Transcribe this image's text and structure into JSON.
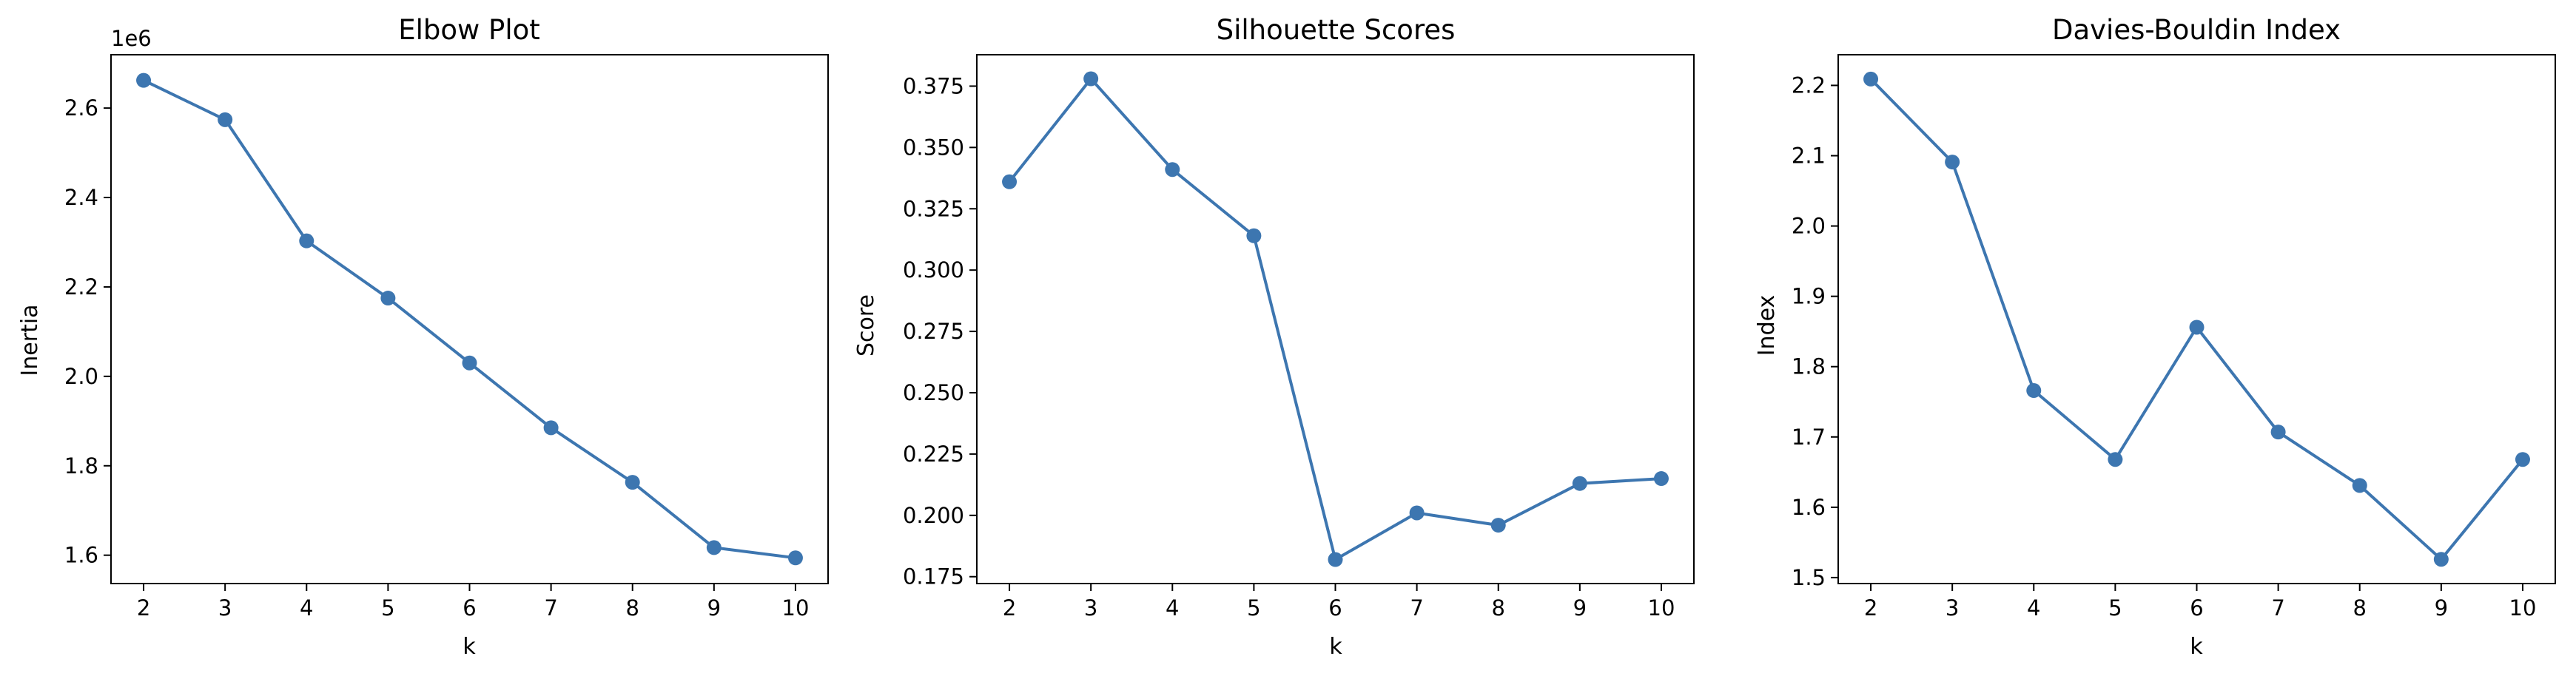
{
  "colors": {
    "series": "#3d76b0",
    "axes": "#000000",
    "background": "#ffffff"
  },
  "chart_data": [
    {
      "type": "line",
      "title": "Elbow Plot",
      "xlabel": "k",
      "ylabel": "Inertia",
      "y_offset_label": "1e6",
      "x": [
        2,
        3,
        4,
        5,
        6,
        7,
        8,
        9,
        10
      ],
      "x_ticks": [
        "2",
        "3",
        "4",
        "5",
        "6",
        "7",
        "8",
        "9",
        "10"
      ],
      "values": [
        2.662,
        2.574,
        2.303,
        2.175,
        2.03,
        1.885,
        1.763,
        1.617,
        1.594
      ],
      "xlim": [
        1.6,
        10.4
      ],
      "ylim": [
        1.5366,
        2.7193
      ],
      "y_ticks": [
        1.6,
        1.8,
        2.0,
        2.2,
        2.4,
        2.6
      ],
      "y_tick_labels": [
        "1.6",
        "1.8",
        "2.0",
        "2.2",
        "2.4",
        "2.6"
      ],
      "marker": "circle",
      "grid": false
    },
    {
      "type": "line",
      "title": "Silhouette Scores",
      "xlabel": "k",
      "ylabel": "Score",
      "x": [
        2,
        3,
        4,
        5,
        6,
        7,
        8,
        9,
        10
      ],
      "x_ticks": [
        "2",
        "3",
        "4",
        "5",
        "6",
        "7",
        "8",
        "9",
        "10"
      ],
      "values": [
        0.336,
        0.378,
        0.341,
        0.314,
        0.182,
        0.201,
        0.196,
        0.213,
        0.215
      ],
      "xlim": [
        1.6,
        10.4
      ],
      "ylim": [
        0.1722,
        0.3878
      ],
      "y_ticks": [
        0.175,
        0.2,
        0.225,
        0.25,
        0.275,
        0.3,
        0.325,
        0.35,
        0.375
      ],
      "y_tick_labels": [
        "0.175",
        "0.200",
        "0.225",
        "0.250",
        "0.275",
        "0.300",
        "0.325",
        "0.350",
        "0.375"
      ],
      "marker": "circle",
      "grid": false
    },
    {
      "type": "line",
      "title": "Davies-Bouldin Index",
      "xlabel": "k",
      "ylabel": "Index",
      "x": [
        2,
        3,
        4,
        5,
        6,
        7,
        8,
        9,
        10
      ],
      "x_ticks": [
        "2",
        "3",
        "4",
        "5",
        "6",
        "7",
        "8",
        "9",
        "10"
      ],
      "values": [
        2.209,
        2.091,
        1.766,
        1.668,
        1.856,
        1.707,
        1.631,
        1.526,
        1.668
      ],
      "xlim": [
        1.6,
        10.4
      ],
      "ylim": [
        1.4915,
        2.2436
      ],
      "y_ticks": [
        1.5,
        1.6,
        1.7,
        1.8,
        1.9,
        2.0,
        2.1,
        2.2
      ],
      "y_tick_labels": [
        "1.5",
        "1.6",
        "1.7",
        "1.8",
        "1.9",
        "2.0",
        "2.1",
        "2.2"
      ],
      "marker": "circle",
      "grid": false
    }
  ]
}
